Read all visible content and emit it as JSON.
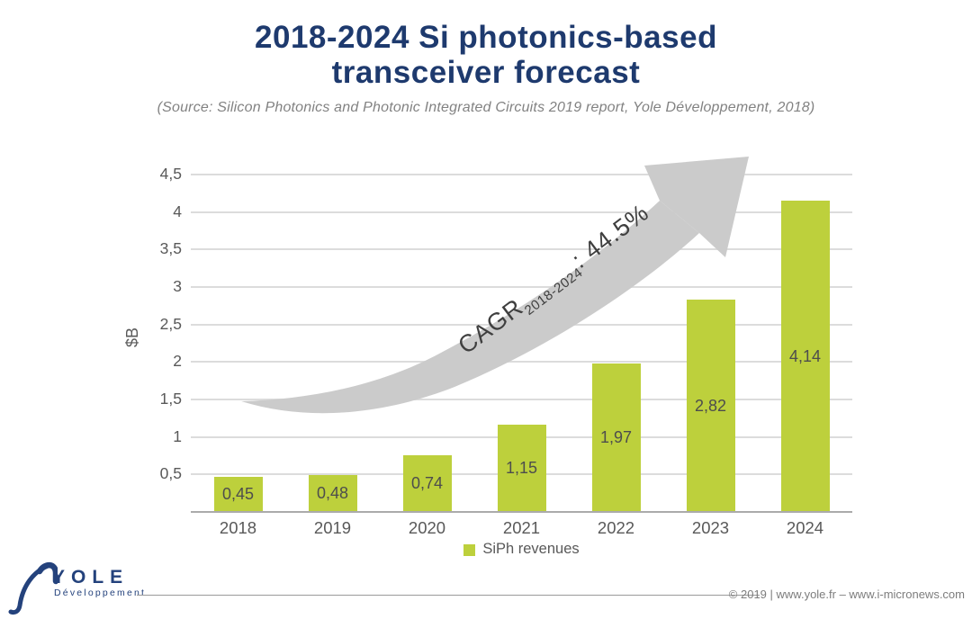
{
  "slide": {
    "title_line1": "2018-2024 Si photonics-based",
    "title_line2": "transceiver forecast",
    "source_note": "(Source: Silicon Photonics and Photonic Integrated Circuits 2019 report, Yole Développement, 2018)"
  },
  "chart_data": {
    "type": "bar",
    "title": "2018-2024 Si photonics-based transceiver forecast",
    "categories": [
      "2018",
      "2019",
      "2020",
      "2021",
      "2022",
      "2023",
      "2024"
    ],
    "values": [
      0.45,
      0.48,
      0.74,
      1.15,
      1.97,
      2.82,
      4.14
    ],
    "value_labels": [
      "0,45",
      "0,48",
      "0,74",
      "1,15",
      "1,97",
      "2,82",
      "4,14"
    ],
    "series": [
      {
        "name": "SiPh revenues",
        "values": [
          0.45,
          0.48,
          0.74,
          1.15,
          1.97,
          2.82,
          4.14
        ]
      }
    ],
    "xlabel": "",
    "ylabel": "$B",
    "ylim": [
      0,
      4.5
    ],
    "ytick_step": 0.5,
    "ytick_labels": [
      "0,5",
      "1",
      "1,5",
      "2",
      "2,5",
      "3",
      "3,5",
      "4",
      "4,5"
    ],
    "grid": true,
    "legend_position": "bottom",
    "bar_color": "#bdd03c",
    "annotation": {
      "text": "CAGR 2018-2024 : 44.5%",
      "prefix": "CAGR",
      "subscript": "2018-2024",
      "suffix": ": 44.5%"
    }
  },
  "legend": {
    "label": "SiPh revenues",
    "swatch_color": "#bdd03c"
  },
  "footer": {
    "logo_text": "YOLE",
    "logo_subtext": "Développement",
    "copyright": "© 2019 | www.yole.fr – www.i-micronews.com"
  },
  "colors": {
    "title_navy": "#1e3a6e",
    "logo_navy": "#24427c",
    "bar_green": "#bdd03c",
    "arrow_gray": "#cbcbcb",
    "gridline_gray": "#dcdcdc",
    "axis_line_gray": "#ababab",
    "axis_text_gray": "#595959"
  }
}
